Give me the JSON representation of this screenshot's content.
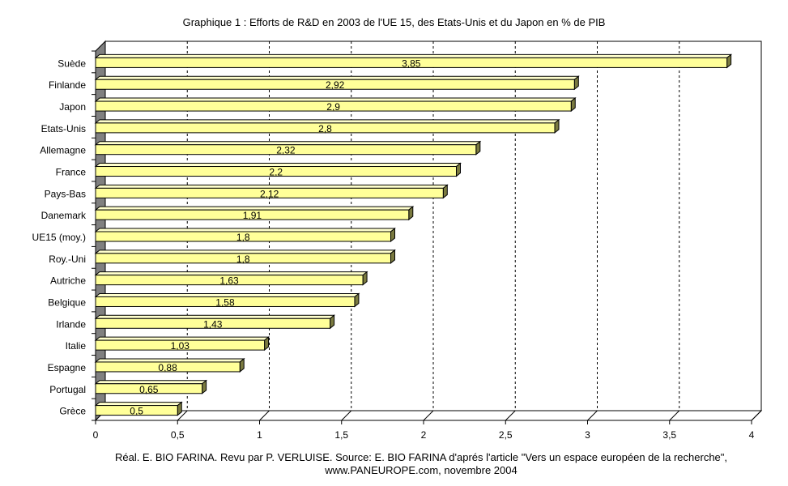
{
  "chart_data": {
    "type": "bar",
    "orientation": "horizontal",
    "title": "Graphique 1 : Efforts de R&D en 2003 de l'UE 15, des Etats-Unis et du Japon en % de PIB",
    "categories": [
      "Suède",
      "Finlande",
      "Japon",
      "Etats-Unis",
      "Allemagne",
      "France",
      "Pays-Bas",
      "Danemark",
      "UE15 (moy.)",
      "Roy.-Uni",
      "Autriche",
      "Belgique",
      "Irlande",
      "Italie",
      "Espagne",
      "Portugal",
      "Grèce"
    ],
    "values": [
      3.85,
      2.92,
      2.9,
      2.8,
      2.32,
      2.2,
      2.12,
      1.91,
      1.8,
      1.8,
      1.63,
      1.58,
      1.43,
      1.03,
      0.88,
      0.65,
      0.5
    ],
    "value_labels": [
      "3,85",
      "2,92",
      "2,9",
      "2,8",
      "2,32",
      "2,2",
      "2,12",
      "1,91",
      "1,8",
      "1,8",
      "1,63",
      "1,58",
      "1,43",
      "1,03",
      "0,88",
      "0,65",
      "0,5"
    ],
    "xlim": [
      0,
      4
    ],
    "xticks": [
      0,
      0.5,
      1,
      1.5,
      2,
      2.5,
      3,
      3.5,
      4
    ],
    "xtick_labels": [
      "0",
      "0,5",
      "1",
      "1,5",
      "2",
      "2,5",
      "3",
      "3,5",
      "4"
    ],
    "grid": true,
    "bar_color": "#ffff99",
    "bar_side_color": "#7a7a40",
    "wall_color": "#808080"
  },
  "source": {
    "line1": "Réal. E. BIO FARINA. Revu par P. VERLUISE. Source: E. BIO FARINA d'aprés l'article \"Vers un espace européen de la recherche\",",
    "line2": "www.PANEUROPE.com, novembre 2004"
  }
}
